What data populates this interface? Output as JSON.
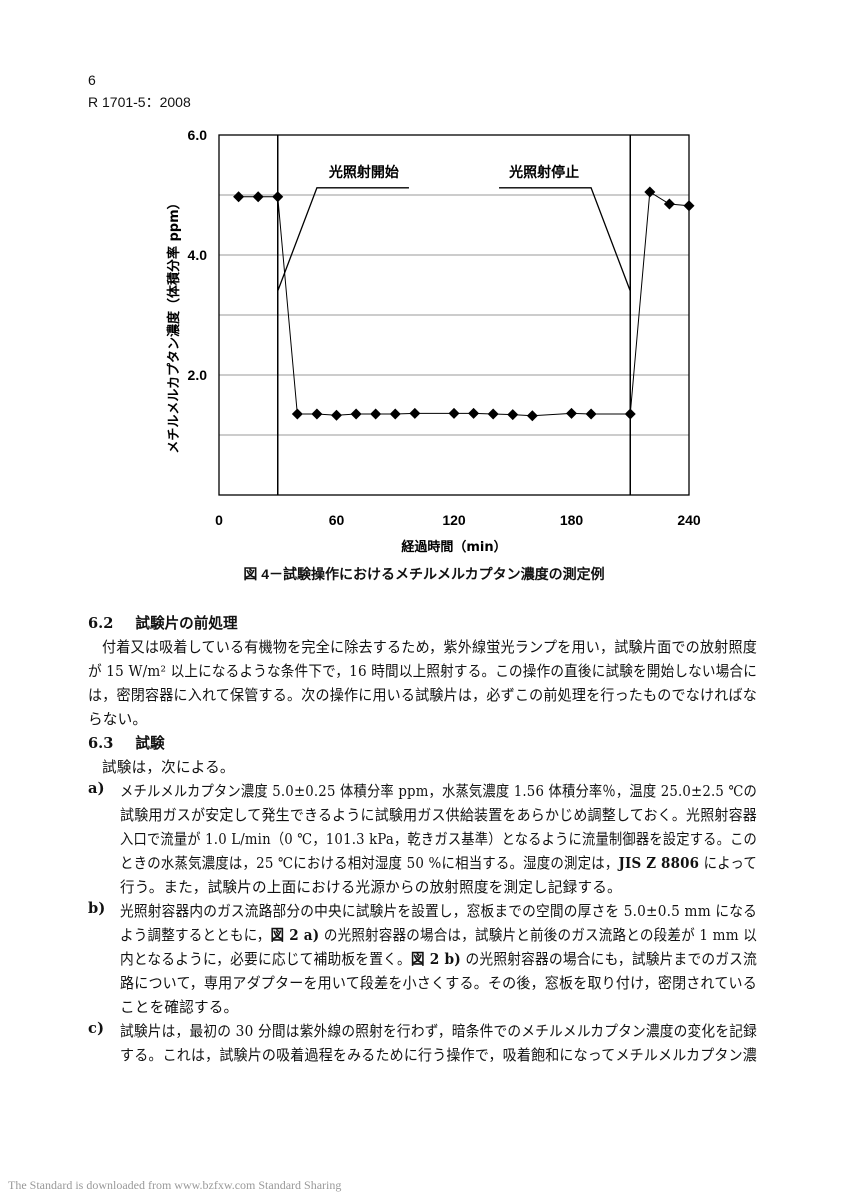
{
  "header": {
    "page_number": "6",
    "standard_id": "R 1701-5：2008"
  },
  "chart_data": {
    "type": "line",
    "title": "",
    "xlabel": "経過時間（min）",
    "ylabel": "メチルメルカプタン濃度（体積分率 ppm）",
    "xlim": [
      0,
      240
    ],
    "ylim": [
      0,
      6
    ],
    "x_ticks": [
      "0",
      "60",
      "120",
      "180",
      "240"
    ],
    "y_ticks": [
      "2.0",
      "4.0",
      "6.0"
    ],
    "y_gridlines": [
      1,
      2,
      3,
      4,
      5
    ],
    "grid": true,
    "marker": "diamond",
    "x": [
      10,
      20,
      30,
      40,
      50,
      60,
      70,
      80,
      90,
      100,
      120,
      130,
      140,
      150,
      160,
      180,
      190,
      210,
      220,
      230,
      240
    ],
    "y": [
      4.97,
      4.97,
      4.97,
      1.35,
      1.35,
      1.33,
      1.35,
      1.35,
      1.35,
      1.36,
      1.36,
      1.36,
      1.35,
      1.34,
      1.32,
      1.36,
      1.35,
      1.35,
      5.05,
      4.85,
      4.82
    ],
    "vertical_lines": [
      30,
      210
    ],
    "annotations": [
      {
        "text": "光照射開始",
        "at_x": 30
      },
      {
        "text": "光照射停止",
        "at_x": 210
      }
    ]
  },
  "caption": "図 4－試験操作におけるメチルメルカプタン濃度の測定例",
  "sections": [
    {
      "type": "heading",
      "num": "6.2",
      "title": "試験片の前処理"
    },
    {
      "type": "line",
      "indent": 1,
      "segs": [
        [
          "付着又は吸着している有機物を完全に除去するため，紫外線蛍光ランプを用い，試験片面での放射照度",
          0
        ]
      ]
    },
    {
      "type": "line",
      "indent": 0,
      "segs": [
        [
          "が 15 W/m² 以上になるような条件下で，16 時間以上照射する。この操作の直後に試験を開始しない場合に",
          0
        ]
      ]
    },
    {
      "type": "line",
      "indent": 0,
      "segs": [
        [
          "は，密閉容器に入れて保管する。次の操作に用いる試験片は，必ずこの前処理を行ったものでなければな",
          0
        ]
      ]
    },
    {
      "type": "line",
      "indent": 0,
      "segs": [
        [
          "らない。",
          0
        ]
      ]
    },
    {
      "type": "heading",
      "num": "6.3",
      "title": "試験"
    },
    {
      "type": "line",
      "indent": 1,
      "segs": [
        [
          "試験は，次による。",
          0
        ]
      ]
    },
    {
      "type": "line",
      "indent": 2,
      "item": "a)",
      "segs": [
        [
          "メチルメルカプタン濃度 5.0±0.25 体積分率 ppm，水蒸気濃度 1.56 体積分率％，温度 25.0±2.5 ℃の",
          0
        ]
      ]
    },
    {
      "type": "line",
      "indent": 2,
      "segs": [
        [
          "試験用ガスが安定して発生できるように試験用ガス供給装置をあらかじめ調整しておく。光照射容器",
          0
        ]
      ]
    },
    {
      "type": "line",
      "indent": 2,
      "segs": [
        [
          "入口で流量が 1.0 L/min（0 ℃，101.3 kPa，乾きガス基準）となるように流量制御器を設定する。この",
          0
        ]
      ]
    },
    {
      "type": "line",
      "indent": 2,
      "segs": [
        [
          "ときの水蒸気濃度は，25 ℃における相対湿度 50 %に相当する。湿度の測定は，",
          0
        ],
        [
          "JIS Z 8806",
          1
        ],
        [
          " によって",
          0
        ]
      ]
    },
    {
      "type": "line",
      "indent": 2,
      "segs": [
        [
          "行う。また，試験片の上面における光源からの放射照度を測定し記録する。",
          0
        ]
      ]
    },
    {
      "type": "line",
      "indent": 2,
      "item": "b)",
      "segs": [
        [
          "光照射容器内のガス流路部分の中央に試験片を設置し，窓板までの空間の厚さを 5.0±0.5 mm になる",
          0
        ]
      ]
    },
    {
      "type": "line",
      "indent": 2,
      "segs": [
        [
          "よう調整するとともに，",
          0
        ],
        [
          "図 2 a)",
          1
        ],
        [
          " の光照射容器の場合は，試験片と前後のガス流路との段差が 1 mm 以",
          0
        ]
      ]
    },
    {
      "type": "line",
      "indent": 2,
      "segs": [
        [
          "内となるように，必要に応じて補助板を置く。",
          0
        ],
        [
          "図 2 b)",
          1
        ],
        [
          " の光照射容器の場合にも，試験片までのガス流",
          0
        ]
      ]
    },
    {
      "type": "line",
      "indent": 2,
      "segs": [
        [
          "路について，専用アダプターを用いて段差を小さくする。その後，窓板を取り付け，密閉されている",
          0
        ]
      ]
    },
    {
      "type": "line",
      "indent": 2,
      "segs": [
        [
          "ことを確認する。",
          0
        ]
      ]
    },
    {
      "type": "line",
      "indent": 2,
      "item": "c)",
      "segs": [
        [
          "試験片は，最初の 30 分間は紫外線の照射を行わず，暗条件でのメチルメルカプタン濃度の変化を記録",
          0
        ]
      ]
    },
    {
      "type": "line",
      "indent": 2,
      "segs": [
        [
          "する。これは，試験片の吸着過程をみるために行う操作で，吸着飽和になってメチルメルカプタン濃",
          0
        ]
      ]
    }
  ],
  "footer": "The Standard is downloaded from www.bzfxw.com Standard Sharing"
}
